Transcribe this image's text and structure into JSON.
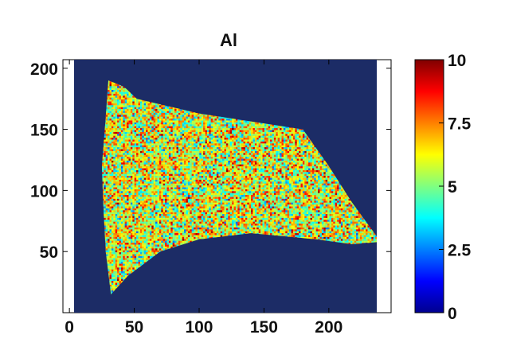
{
  "chart_data": [
    {
      "type": "heatmap",
      "title": "Al",
      "xlabel": "",
      "ylabel": "",
      "xlim": [
        -5,
        248
      ],
      "ylim": [
        0,
        207
      ],
      "x_ticks": [
        "0",
        "50",
        "100",
        "150",
        "200"
      ],
      "y_ticks": [
        "50",
        "100",
        "150",
        "200"
      ],
      "grid": false,
      "background_value": 0,
      "region_outline": [
        [
          30,
          190
        ],
        [
          42,
          185
        ],
        [
          52,
          175
        ],
        [
          100,
          163
        ],
        [
          180,
          150
        ],
        [
          200,
          120
        ],
        [
          218,
          90
        ],
        [
          240,
          58
        ],
        [
          218,
          56
        ],
        [
          190,
          60
        ],
        [
          140,
          65
        ],
        [
          100,
          60
        ],
        [
          70,
          50
        ],
        [
          45,
          30
        ],
        [
          32,
          15
        ],
        [
          28,
          50
        ],
        [
          26,
          90
        ],
        [
          25,
          120
        ],
        [
          28,
          160
        ]
      ],
      "region_value_range": [
        2,
        10
      ],
      "region_typical_value": 6,
      "colorbar": {
        "min": 0,
        "max": 10,
        "ticks": [
          "0",
          "2.5",
          "5",
          "7.5",
          "10"
        ],
        "colormap": "jet"
      },
      "colors": {
        "background": "#1c2c66",
        "jet_stops": [
          "#00008f",
          "#0000ff",
          "#0080ff",
          "#00ffff",
          "#80ff80",
          "#ffff00",
          "#ff8000",
          "#ff0000",
          "#800000"
        ]
      }
    }
  ]
}
